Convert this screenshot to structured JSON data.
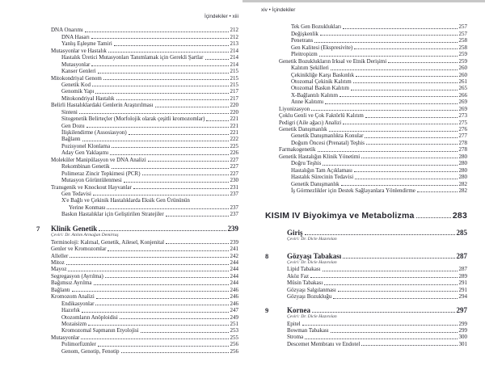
{
  "scan_edge_color": "#c7c7c7",
  "left_page": {
    "header": "İçindekiler • xiii",
    "items": [
      {
        "type": "entry",
        "level": "lv1",
        "text": "DNA Onarımı",
        "page": "212"
      },
      {
        "type": "entry",
        "level": "lv2",
        "text": "DNA Hasarı",
        "page": "212"
      },
      {
        "type": "entry",
        "level": "lv2",
        "text": "Yanlış Eşleşme Tamiri",
        "page": "213"
      },
      {
        "type": "entry",
        "level": "lv1",
        "text": "Mutasyonlar ve Hastalık",
        "page": "214"
      },
      {
        "type": "entry",
        "level": "lv2",
        "text": "Hastalık Üretici Mutasyonları Tanımlamak için Gerekli Şartlar",
        "page": "214"
      },
      {
        "type": "entry",
        "level": "lv2",
        "text": "Mutasyonlar",
        "page": "214"
      },
      {
        "type": "entry",
        "level": "lv2",
        "text": "Kanser Genleri",
        "page": "215"
      },
      {
        "type": "entry",
        "level": "lv1",
        "text": "Mitokondriyal Genom",
        "page": "215"
      },
      {
        "type": "entry",
        "level": "lv2",
        "text": "Genetik Kod",
        "page": "215"
      },
      {
        "type": "entry",
        "level": "lv2",
        "text": "Genomik Yapı",
        "page": "217"
      },
      {
        "type": "entry",
        "level": "lv2",
        "text": "Mitokondriyal Hastalık",
        "page": "217"
      },
      {
        "type": "entry",
        "level": "lv1",
        "text": "Belirli Hastalıklardaki Genlerin Araştırılması",
        "page": "220"
      },
      {
        "type": "entry",
        "level": "lv2",
        "text": "Sinteni",
        "page": "220"
      },
      {
        "type": "entry",
        "level": "lv2",
        "text": "Sitogenetik Belirteçler (Morfolojik olarak çeşitli kromozomlar)",
        "page": "221"
      },
      {
        "type": "entry",
        "level": "lv2",
        "text": "Gen Dozu",
        "page": "221"
      },
      {
        "type": "entry",
        "level": "lv2",
        "text": "İlişkilendirme (Assosiasyon)",
        "page": "221"
      },
      {
        "type": "entry",
        "level": "lv2",
        "text": "Bağlantı",
        "page": "222"
      },
      {
        "type": "entry",
        "level": "lv2",
        "text": "Pozisyonel Klonlama",
        "page": "225"
      },
      {
        "type": "entry",
        "level": "lv2",
        "text": "Aday Gen Yaklaşımı",
        "page": "226"
      },
      {
        "type": "entry",
        "level": "lv1",
        "text": "Moleküler Manipülasyon ve DNA Analizi",
        "page": "227"
      },
      {
        "type": "entry",
        "level": "lv2",
        "text": "Rekombinan Genetik",
        "page": "227"
      },
      {
        "type": "entry",
        "level": "lv2",
        "text": "Polimeraz Zincir Tepkimesi (PCR)",
        "page": "227"
      },
      {
        "type": "entry",
        "level": "lv2",
        "text": "Mutasyon Görüntülenmesi",
        "page": "230"
      },
      {
        "type": "entry",
        "level": "lv1",
        "text": "Transgenik ve Knockout Hayvanlar",
        "page": "231"
      },
      {
        "type": "entry",
        "level": "lv2",
        "text": "Gen Tedavisi",
        "page": "237"
      },
      {
        "type": "entry",
        "level": "lv2",
        "text": "X'e Bağlı ve Çekinik Hastalıklarda Eksik Gen Ürününün",
        "page": ""
      },
      {
        "type": "entry",
        "level": "lv3",
        "text": "Yerine Konması",
        "page": "237"
      },
      {
        "type": "entry",
        "level": "lv2",
        "text": "Baskın Hastalıklar için Geliştirilen Stratejiler",
        "page": "237"
      },
      {
        "type": "gap",
        "h": 8
      },
      {
        "type": "chapter",
        "num": "7",
        "text": "Klinik Genetik",
        "page": "239"
      },
      {
        "type": "translator",
        "text": "Çeviri: Dr. Atılım Armağan Demirtaş"
      },
      {
        "type": "entry",
        "level": "lv1",
        "text": "Terminoloji: Kalıtsal, Genetik, Ailesel, Konjenital",
        "page": "239"
      },
      {
        "type": "entry",
        "level": "lv1",
        "text": "Genler ve Kromozomlar",
        "page": "241"
      },
      {
        "type": "entry",
        "level": "lv1",
        "text": "Alleller",
        "page": "242"
      },
      {
        "type": "entry",
        "level": "lv1",
        "text": "Mitoz",
        "page": "244"
      },
      {
        "type": "entry",
        "level": "lv1",
        "text": "Mayoz",
        "page": "244"
      },
      {
        "type": "entry",
        "level": "lv1",
        "text": "Segregasyon (Ayrılma)",
        "page": "244"
      },
      {
        "type": "entry",
        "level": "lv1",
        "text": "Bağımsız Ayrılma",
        "page": "244"
      },
      {
        "type": "entry",
        "level": "lv1",
        "text": "Bağlantı",
        "page": "246"
      },
      {
        "type": "entry",
        "level": "lv1",
        "text": "Kromozom Analizi",
        "page": "246"
      },
      {
        "type": "entry",
        "level": "lv2",
        "text": "Endikasyonlar",
        "page": "246"
      },
      {
        "type": "entry",
        "level": "lv2",
        "text": "Hazırlık",
        "page": "247"
      },
      {
        "type": "entry",
        "level": "lv2",
        "text": "Otozomların Anöploidisi",
        "page": "249"
      },
      {
        "type": "entry",
        "level": "lv2",
        "text": "Mozaisizm",
        "page": "251"
      },
      {
        "type": "entry",
        "level": "lv2",
        "text": "Kromozomal Sapmanın Etyolojisi",
        "page": "253"
      },
      {
        "type": "entry",
        "level": "lv1",
        "text": "Mutasyonlar",
        "page": "255"
      },
      {
        "type": "entry",
        "level": "lv2",
        "text": "Polimorfizmler",
        "page": "256"
      },
      {
        "type": "entry",
        "level": "lv2",
        "text": "Genom, Genotip, Fenotip",
        "page": "256"
      }
    ]
  },
  "right_page": {
    "header": "xiv • İçindekiler",
    "items": [
      {
        "type": "entry",
        "level": "lv2",
        "text": "Tek Gen Bozuklukları",
        "page": "257"
      },
      {
        "type": "entry",
        "level": "lv2",
        "text": "Değişkenlik",
        "page": "257"
      },
      {
        "type": "entry",
        "level": "lv2",
        "text": "Penetrans",
        "page": "258"
      },
      {
        "type": "entry",
        "level": "lv2",
        "text": "Gen Kalitesi (Ekspresivite)",
        "page": "258"
      },
      {
        "type": "entry",
        "level": "lv2",
        "text": "Pleitropizm",
        "page": "259"
      },
      {
        "type": "entry",
        "level": "lv1",
        "text": "Genetik Bozuklukların Irksal ve Etnik Derişimi",
        "page": "259"
      },
      {
        "type": "entry",
        "level": "lv2",
        "text": "Kalıtım Şekilleri",
        "page": "260"
      },
      {
        "type": "entry",
        "level": "lv2",
        "text": "Çekinikliğe Karşı Baskınlık",
        "page": "260"
      },
      {
        "type": "entry",
        "level": "lv2",
        "text": "Otozomal Çekinik Kalıtım",
        "page": "261"
      },
      {
        "type": "entry",
        "level": "lv2",
        "text": "Otozomal Baskın Kalıtım",
        "page": "265"
      },
      {
        "type": "entry",
        "level": "lv2",
        "text": "X-Bağlantılı Kalıtım",
        "page": "266"
      },
      {
        "type": "entry",
        "level": "lv2",
        "text": "Anne Kalıtımı",
        "page": "269"
      },
      {
        "type": "entry",
        "level": "lv1",
        "text": "Liyonizasyon",
        "page": "269"
      },
      {
        "type": "entry",
        "level": "lv1",
        "text": "Çoklu Genli ve Çok Faktörlü Kalıtım",
        "page": "273"
      },
      {
        "type": "entry",
        "level": "lv1",
        "text": "Pedigri (Aile ağacı) Analizi",
        "page": "275"
      },
      {
        "type": "entry",
        "level": "lv1",
        "text": "Genetik Danışmanlık",
        "page": "276"
      },
      {
        "type": "entry",
        "level": "lv2",
        "text": "Genetik Danışmanlıkta Konular",
        "page": "277"
      },
      {
        "type": "entry",
        "level": "lv2",
        "text": "Doğum Öncesi (Prenatal) Teşhis",
        "page": "278"
      },
      {
        "type": "entry",
        "level": "lv1",
        "text": "Farmakogenetik",
        "page": "278"
      },
      {
        "type": "entry",
        "level": "lv1",
        "text": "Genetik Hastalığın Klinik Yönetimi",
        "page": "280"
      },
      {
        "type": "entry",
        "level": "lv2",
        "text": "Doğru Teşhis",
        "page": "280"
      },
      {
        "type": "entry",
        "level": "lv2",
        "text": "Hastalığın Tam Açıklaması",
        "page": "280"
      },
      {
        "type": "entry",
        "level": "lv2",
        "text": "Hastalık Sürecinin Tedavisi",
        "page": "280"
      },
      {
        "type": "entry",
        "level": "lv2",
        "text": "Genetik Danışmanlık",
        "page": "282"
      },
      {
        "type": "entry",
        "level": "lv2",
        "text": "İş Görmezlikler için Destek Sağlayanlara Yönlendirme",
        "page": "282"
      },
      {
        "type": "gap",
        "h": 20
      },
      {
        "type": "part",
        "text": "KISIM IV Biyokimya ve Metabolizma",
        "page": "283"
      },
      {
        "type": "gap",
        "h": 9
      },
      {
        "type": "chapter",
        "num": "",
        "text": "Giriş",
        "page": "285"
      },
      {
        "type": "translator",
        "text": "Çeviri: Dr. Dicle Hazırolan"
      },
      {
        "type": "gap",
        "h": 11
      },
      {
        "type": "chapter",
        "num": "8",
        "text": "Gözyaşı Tabakası",
        "page": "287"
      },
      {
        "type": "translator",
        "text": "Çeviri: Dr. Dicle Hazırolan"
      },
      {
        "type": "entry",
        "level": "lvc",
        "text": "Lipid Tabakası",
        "page": "287"
      },
      {
        "type": "entry",
        "level": "lvc",
        "text": "Aköz Faz",
        "page": "289"
      },
      {
        "type": "entry",
        "level": "lvc",
        "text": "Müsin Tabakası",
        "page": "291"
      },
      {
        "type": "entry",
        "level": "lvc",
        "text": "Gözyaşı Salgılanması",
        "page": "291"
      },
      {
        "type": "entry",
        "level": "lvc",
        "text": "Gözyaşı Bozukluğu",
        "page": "294"
      },
      {
        "type": "gap",
        "h": 7
      },
      {
        "type": "chapter",
        "num": "9",
        "text": "Kornea",
        "page": "297"
      },
      {
        "type": "translator",
        "text": "Çeviri: Dr. Dicle Hazırolan"
      },
      {
        "type": "entry",
        "level": "lvc",
        "text": "Epitel",
        "page": "299"
      },
      {
        "type": "entry",
        "level": "lvc",
        "text": "Bowman Tabakası",
        "page": "299"
      },
      {
        "type": "entry",
        "level": "lvc",
        "text": "Stroma",
        "page": "300"
      },
      {
        "type": "entry",
        "level": "lvc",
        "text": "Descemet Membranı ve Endotel",
        "page": "301"
      }
    ]
  }
}
